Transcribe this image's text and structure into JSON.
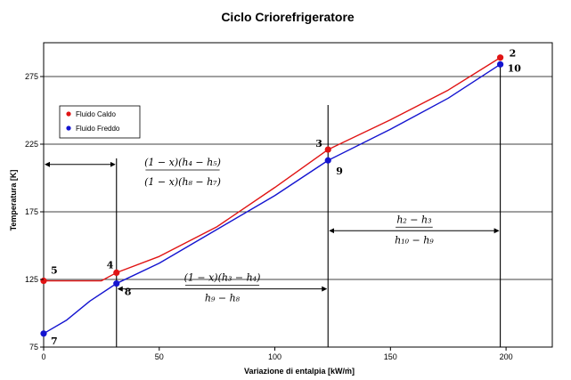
{
  "chart_data": {
    "type": "line",
    "title": "Ciclo Criorefrigeratore",
    "xlabel": "Variazione di entalpia [kW/ṁ]",
    "ylabel": "Temperatura [K]",
    "xlim": [
      0,
      220
    ],
    "ylim": [
      75,
      300
    ],
    "x_ticks": [
      0,
      50,
      100,
      150,
      200
    ],
    "y_ticks": [
      75,
      125,
      175,
      225,
      275
    ],
    "grid": "horizontal",
    "legend_position": "upper-left",
    "series": [
      {
        "name": "Fluido Caldo",
        "color": "#e01414",
        "points": [
          [
            0,
            124
          ],
          [
            25,
            124
          ],
          [
            31.5,
            130
          ],
          [
            50,
            142
          ],
          [
            75,
            164
          ],
          [
            100,
            193
          ],
          [
            123,
            221
          ],
          [
            150,
            243
          ],
          [
            175,
            265
          ],
          [
            197.5,
            289
          ]
        ],
        "markers": [
          [
            0,
            124
          ],
          [
            31.5,
            130
          ],
          [
            123,
            221
          ],
          [
            197.5,
            289
          ]
        ]
      },
      {
        "name": "Fluido Freddo",
        "color": "#1414d0",
        "points": [
          [
            0,
            85
          ],
          [
            10,
            95
          ],
          [
            20,
            109
          ],
          [
            31.5,
            122
          ],
          [
            50,
            137
          ],
          [
            75,
            162
          ],
          [
            100,
            187
          ],
          [
            123,
            213
          ],
          [
            150,
            236
          ],
          [
            175,
            259
          ],
          [
            197.5,
            284
          ]
        ],
        "markers": [
          [
            0,
            85
          ],
          [
            31.5,
            122
          ],
          [
            123,
            213
          ],
          [
            197.5,
            284
          ]
        ]
      }
    ],
    "vertical_lines": [
      31.5,
      123,
      197.5
    ],
    "point_labels": [
      {
        "text": "5",
        "x": 0,
        "y": 124
      },
      {
        "text": "4",
        "x": 31.5,
        "y": 130
      },
      {
        "text": "3",
        "x": 123,
        "y": 221
      },
      {
        "text": "2",
        "x": 197.5,
        "y": 289
      },
      {
        "text": "7",
        "x": 0,
        "y": 85
      },
      {
        "text": "8",
        "x": 31.5,
        "y": 122
      },
      {
        "text": "9",
        "x": 123,
        "y": 213
      },
      {
        "text": "10",
        "x": 197.5,
        "y": 284
      }
    ],
    "annotations": [
      {
        "numerator": "(1 − x)(h₄ − h₅)",
        "denominator": "(1 − x)(h₈ − h₇)",
        "span": [
          0,
          31.5
        ],
        "y": 210
      },
      {
        "numerator": "(1 − x)(h₃ − h₄)",
        "denominator": "h₉ − h₈",
        "span": [
          31.5,
          123
        ],
        "y": 118
      },
      {
        "numerator": "h₂ − h₃",
        "denominator": "h₁₀ − h₉",
        "span": [
          123,
          197.5
        ],
        "y": 161
      }
    ]
  }
}
